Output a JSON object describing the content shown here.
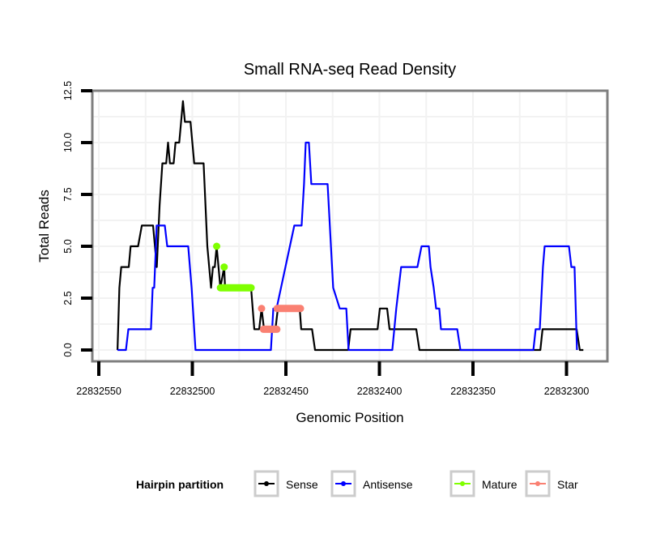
{
  "chart_data": {
    "type": "line",
    "title": "Small RNA-seq Read Density",
    "xlabel": "Genomic Position",
    "ylabel": "Total Reads",
    "x_reversed": true,
    "xlim": [
      22832560,
      22832280
    ],
    "ylim": [
      -0.6,
      12.6
    ],
    "x_ticks": [
      22832550,
      22832500,
      22832450,
      22832400,
      22832350,
      22832300
    ],
    "x_tick_labels": [
      "22832550",
      "22832500",
      "22832450",
      "22832400",
      "22832350",
      "22832300"
    ],
    "y_ticks": [
      0,
      2.5,
      5,
      7.5,
      10,
      12.5
    ],
    "y_tick_labels": [
      "0.0",
      "2.5",
      "5.0",
      "7.5",
      "10.0",
      "12.5"
    ],
    "grid": true,
    "legend": {
      "title": "Hairpin partition",
      "position": "bottom",
      "entries": [
        {
          "name": "Sense",
          "color": "#000000"
        },
        {
          "name": "Antisense",
          "color": "#0000ff"
        },
        {
          "name": "Mature",
          "color": "#7fff00"
        },
        {
          "name": "Star",
          "color": "#fa8072"
        }
      ]
    },
    "series": [
      {
        "name": "Sense",
        "color": "#000000",
        "style": "line",
        "points": [
          [
            22832540,
            0
          ],
          [
            22832539,
            3
          ],
          [
            22832538,
            4
          ],
          [
            22832534,
            4
          ],
          [
            22832533,
            5
          ],
          [
            22832529,
            5
          ],
          [
            22832527,
            6
          ],
          [
            22832521,
            6
          ],
          [
            22832520,
            5
          ],
          [
            22832519,
            4
          ],
          [
            22832517.5,
            7
          ],
          [
            22832516,
            9
          ],
          [
            22832514,
            9
          ],
          [
            22832513,
            10
          ],
          [
            22832512,
            9
          ],
          [
            22832510,
            9
          ],
          [
            22832509,
            10
          ],
          [
            22832507,
            10
          ],
          [
            22832505,
            12
          ],
          [
            22832504,
            11
          ],
          [
            22832501,
            11
          ],
          [
            22832500,
            10
          ],
          [
            22832499,
            9
          ],
          [
            22832494,
            9
          ],
          [
            22832492,
            5
          ],
          [
            22832490,
            3
          ],
          [
            22832489,
            4
          ],
          [
            22832488,
            4
          ],
          [
            22832487,
            5
          ],
          [
            22832485,
            3
          ],
          [
            22832483,
            4
          ],
          [
            22832482.5,
            3
          ],
          [
            22832468.6,
            3
          ],
          [
            22832466.9,
            1
          ],
          [
            22832464.3,
            1
          ],
          [
            22832463,
            2
          ],
          [
            22832461.7,
            1
          ],
          [
            22832455.6,
            1
          ],
          [
            22832454.3,
            2
          ],
          [
            22832442.6,
            2
          ],
          [
            22832441.8,
            1
          ],
          [
            22832436,
            1
          ],
          [
            22832434.4,
            0
          ],
          [
            22832416.7,
            0
          ],
          [
            22832415.4,
            1
          ],
          [
            22832401,
            1
          ],
          [
            22832399.8,
            2
          ],
          [
            22832395.9,
            2
          ],
          [
            22832394.6,
            1
          ],
          [
            22832380.3,
            1
          ],
          [
            22832378.6,
            0
          ],
          [
            22832314,
            0
          ],
          [
            22832312.8,
            1
          ],
          [
            22832294.6,
            1
          ],
          [
            22832292.9,
            0
          ],
          [
            22832291,
            0
          ]
        ]
      },
      {
        "name": "Antisense",
        "color": "#0000ff",
        "style": "line",
        "points": [
          [
            22832540,
            0
          ],
          [
            22832535.5,
            0
          ],
          [
            22832534.2,
            1
          ],
          [
            22832522.1,
            1
          ],
          [
            22832521.2,
            3
          ],
          [
            22832520.4,
            3
          ],
          [
            22832519.5,
            5
          ],
          [
            22832519.1,
            6
          ],
          [
            22832514.7,
            6
          ],
          [
            22832513.4,
            5
          ],
          [
            22832502.2,
            5
          ],
          [
            22832500.4,
            3
          ],
          [
            22832498.3,
            0
          ],
          [
            22832458,
            0
          ],
          [
            22832456.7,
            2
          ],
          [
            22832455,
            2
          ],
          [
            22832445.5,
            6
          ],
          [
            22832441.6,
            6
          ],
          [
            22832440.3,
            8
          ],
          [
            22832439.4,
            10
          ],
          [
            22832437.7,
            10
          ],
          [
            22832436.4,
            8
          ],
          [
            22832427.7,
            8
          ],
          [
            22832424.7,
            3
          ],
          [
            22832421.2,
            2
          ],
          [
            22832417.7,
            2
          ],
          [
            22832416.5,
            0
          ],
          [
            22832393.1,
            0
          ],
          [
            22832391,
            2
          ],
          [
            22832389.7,
            3
          ],
          [
            22832388.4,
            4
          ],
          [
            22832379.7,
            4
          ],
          [
            22832377.5,
            5
          ],
          [
            22832373.6,
            5
          ],
          [
            22832372.7,
            4
          ],
          [
            22832371,
            3
          ],
          [
            22832369.7,
            2
          ],
          [
            22832368,
            2
          ],
          [
            22832367.1,
            1
          ],
          [
            22832358.4,
            1
          ],
          [
            22832356.7,
            0
          ],
          [
            22832317.7,
            0
          ],
          [
            22832316.5,
            1
          ],
          [
            22832314.3,
            1
          ],
          [
            22832312.6,
            4
          ],
          [
            22832311.7,
            5
          ],
          [
            22832298.7,
            5
          ],
          [
            22832297.4,
            4
          ],
          [
            22832295.7,
            4
          ],
          [
            22832294.4,
            0
          ]
        ]
      },
      {
        "name": "Mature",
        "color": "#7fff00",
        "style": "points",
        "points": [
          [
            22832487,
            5
          ],
          [
            22832483,
            4
          ]
        ],
        "segments": [
          [
            22832485,
            22832468.6,
            3
          ]
        ]
      },
      {
        "name": "Star",
        "color": "#fa8072",
        "style": "points",
        "points": [
          [
            22832463,
            2
          ]
        ],
        "segments": [
          [
            22832462,
            22832454.8,
            1
          ],
          [
            22832454.7,
            22832442.2,
            2
          ]
        ]
      }
    ]
  }
}
